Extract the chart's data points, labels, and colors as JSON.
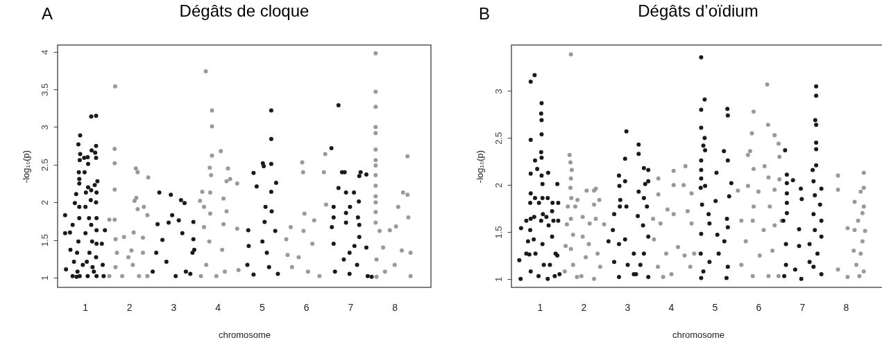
{
  "chart_data": [
    {
      "type": "scatter",
      "title": "Dégâts de cloque",
      "xlabel": "chromosome",
      "ylabel": "-log₁₀(p)",
      "annotations": [
        "A"
      ],
      "marker": "circle",
      "xlim": [
        0.38,
        8.82
      ],
      "ylim": [
        0.87,
        4.09
      ],
      "xticks": [
        1,
        2,
        3,
        4,
        5,
        6,
        7,
        8
      ],
      "yticks": [
        1.0,
        1.5,
        2.0,
        2.5,
        3.0,
        3.5,
        4.0
      ],
      "series": [
        {
          "color": "#1a1a1a",
          "x": [
            0.55,
            0.55,
            0.57,
            0.66,
            0.67,
            0.72,
            0.77,
            0.8,
            0.82,
            0.83,
            0.85,
            0.86,
            0.87,
            0.87,
            0.88,
            0.89,
            0.89,
            0.87,
            0.87,
            0.85,
            0.81,
            0.88,
            0.98,
            0.99,
            1.01,
            1.02,
            1.01,
            0.95,
            1.06,
            1.07,
            1.07,
            1.09,
            1.1,
            1.06,
            1.14,
            1.15,
            1.14,
            1.13,
            1.14,
            1.16,
            1.17,
            1.22,
            1.25,
            1.25,
            1.23,
            1.25,
            1.26,
            1.25,
            1.26,
            1.26,
            1.26,
            1.25,
            1.26,
            1.28,
            1.38,
            1.45,
            1.4,
            1.42,
            1.2,
            1.04,
            0.72,
            0.75
          ],
          "values": [
            1.83,
            1.59,
            1.11,
            1.6,
            1.37,
            1.7,
            1.99,
            2.11,
            1.33,
            1.08,
            2.77,
            2.4,
            2.25,
            2.31,
            2.56,
            2.89,
            2.64,
            1.94,
            1.79,
            1.48,
            1.01,
            1.02,
            2.59,
            2.4,
            1.94,
            2.13,
            1.59,
            1.17,
            2.6,
            2.51,
            2.2,
            1.79,
            1.33,
            1.02,
            3.14,
            2.69,
            2.16,
            2.03,
            1.7,
            1.48,
            1.14,
            2.23,
            3.15,
            2.75,
            2.66,
            2.59,
            2.13,
            2.0,
            1.79,
            1.63,
            1.45,
            1.27,
            1.02,
            2.28,
            1.45,
            1.63,
            1.17,
            1.02,
            1.08,
            1.21,
            1.02,
            1.21
          ]
        },
        {
          "color": "#999999",
          "x": [
            1.68,
            1.67,
            1.67,
            1.67,
            1.67,
            1.55,
            1.69,
            1.72,
            1.69,
            1.88,
            1.55,
            1.84,
            2.15,
            2.19,
            2.12,
            2.16,
            2.19,
            2.33,
            2.43,
            2.41,
            2.1,
            2.31,
            2.08,
            2.22,
            2.41,
            2.05,
            2.31,
            1.98
          ],
          "values": [
            3.54,
            2.71,
            2.52,
            2.17,
            1.77,
            1.77,
            1.51,
            1.33,
            1.14,
            1.54,
            1.02,
            1.02,
            2.45,
            2.4,
            2.02,
            2.06,
            1.91,
            1.94,
            2.33,
            1.83,
            1.6,
            1.53,
            1.17,
            1.02,
            1.02,
            1.36,
            1.33,
            1.27
          ]
        },
        {
          "color": "#1a1a1a",
          "x": [
            2.68,
            2.94,
            3.17,
            3.25,
            2.97,
            2.64,
            2.89,
            2.75,
            3.12,
            3.2,
            2.61,
            2.84,
            3.05,
            3.28,
            2.53,
            3.43,
            3.45,
            3.38,
            3.47,
            3.45
          ],
          "values": [
            2.13,
            2.1,
            2.03,
            1.99,
            1.83,
            1.71,
            1.73,
            1.5,
            1.76,
            1.59,
            1.33,
            1.21,
            1.02,
            1.08,
            1.08,
            1.33,
            1.74,
            1.05,
            1.37,
            1.51
          ]
        },
        {
          "color": "#999999",
          "x": [
            3.73,
            3.87,
            3.87,
            3.87,
            4.07,
            3.82,
            3.85,
            4.23,
            4.2,
            3.65,
            3.83,
            3.6,
            3.69,
            4.13,
            4.28,
            4.44,
            3.83,
            4.2,
            3.69,
            4.13,
            3.81,
            4.1,
            4.44,
            3.74,
            4.16,
            3.62,
            3.97,
            4.47
          ],
          "values": [
            3.74,
            3.22,
            3.01,
            2.62,
            2.68,
            2.46,
            2.36,
            2.45,
            2.28,
            2.14,
            2.13,
            2.02,
            1.94,
            2.05,
            2.31,
            2.25,
            1.85,
            1.88,
            1.67,
            1.71,
            1.48,
            1.37,
            1.65,
            1.17,
            1.08,
            1.02,
            1.02,
            1.1
          ]
        },
        {
          "color": "#1a1a1a",
          "x": [
            5.21,
            5.21,
            5.02,
            5.04,
            5.21,
            4.81,
            4.88,
            5.32,
            5.21,
            5.08,
            5.22,
            5.06,
            4.69,
            5.3,
            4.7,
            5.01,
            5.11,
            4.67,
            4.81,
            5.16,
            5.36
          ],
          "values": [
            3.22,
            2.84,
            2.52,
            2.48,
            2.51,
            2.39,
            2.21,
            2.26,
            2.14,
            1.94,
            1.88,
            1.74,
            1.63,
            1.62,
            1.42,
            1.48,
            1.33,
            1.17,
            1.04,
            1.14,
            1.05
          ]
        },
        {
          "color": "#999999",
          "x": [
            5.91,
            5.93,
            5.96,
            5.65,
            5.55,
            6.18,
            5.94,
            6.4,
            6.43,
            6.45,
            6.14,
            5.83,
            5.68,
            6.04,
            6.3,
            5.58
          ],
          "values": [
            2.53,
            2.4,
            1.85,
            1.67,
            1.51,
            1.76,
            1.62,
            2.4,
            2.64,
            1.97,
            1.45,
            1.27,
            1.14,
            1.08,
            1.02,
            1.3
          ]
        },
        {
          "color": "#1a1a1a",
          "x": [
            6.73,
            6.57,
            6.81,
            6.87,
            7.23,
            7.2,
            7.36,
            6.73,
            6.9,
            7.08,
            7.19,
            6.99,
            6.62,
            6.62,
            6.9,
            7.17,
            7.2,
            6.9,
            6.58,
            7.2,
            6.62,
            7.09,
            6.98,
            7.36,
            6.85,
            7.15,
            6.65,
            6.98,
            7.39,
            7.48
          ],
          "values": [
            3.29,
            2.72,
            2.4,
            2.4,
            2.4,
            2.35,
            2.37,
            2.19,
            2.13,
            2.13,
            2.01,
            1.94,
            1.94,
            1.8,
            1.86,
            1.8,
            1.7,
            1.73,
            1.67,
            1.54,
            1.45,
            1.42,
            1.33,
            1.4,
            1.24,
            1.17,
            1.08,
            1.05,
            1.02,
            1.01
          ]
        },
        {
          "color": "#999999",
          "x": [
            7.57,
            7.57,
            7.57,
            7.57,
            7.57,
            7.57,
            7.57,
            7.57,
            7.57,
            7.57,
            7.57,
            7.57,
            7.57,
            7.57,
            8.29,
            8.19,
            8.29,
            8.08,
            7.66,
            8.03,
            8.31,
            7.89,
            7.74,
            8.16,
            8.36,
            7.59,
            8.0,
            8.36,
            7.78,
            7.59
          ],
          "values": [
            3.98,
            3.47,
            3.27,
            3.0,
            2.92,
            2.7,
            2.56,
            2.49,
            2.36,
            2.22,
            2.08,
            2.0,
            1.87,
            1.73,
            2.61,
            2.13,
            2.1,
            1.94,
            1.62,
            1.68,
            1.8,
            1.63,
            1.4,
            1.36,
            1.33,
            1.24,
            1.17,
            1.02,
            1.08,
            1.01
          ]
        }
      ]
    },
    {
      "type": "scatter",
      "title": "Dégâts d’oïdium",
      "xlabel": "chromosome",
      "ylabel": "-log₁₀(p)",
      "annotations": [
        "B"
      ],
      "marker": "circle",
      "xlim": [
        0.35,
        8.89
      ],
      "ylim": [
        0.91,
        3.49
      ],
      "xticks": [
        1,
        2,
        3,
        4,
        5,
        6,
        7,
        8
      ],
      "yticks": [
        1.0,
        1.5,
        2.0,
        2.5,
        3.0
      ],
      "series": [
        {
          "color": "#1a1a1a",
          "x": [
            0.57,
            0.53,
            0.56,
            0.69,
            0.69,
            0.73,
            0.79,
            0.79,
            0.79,
            0.79,
            0.78,
            0.79,
            0.78,
            0.79,
            0.76,
            0.88,
            0.89,
            0.94,
            0.89,
            0.87,
            0.86,
            0.9,
            0.97,
            1.04,
            1.03,
            1.04,
            1.04,
            1.03,
            1.04,
            1.04,
            1.06,
            1.06,
            1.07,
            1.03,
            1.09,
            1.06,
            0.98,
            1.15,
            1.18,
            1.19,
            1.2,
            1.28,
            1.29,
            1.31,
            1.28,
            1.36,
            1.4,
            1.42,
            1.42,
            1.4,
            1.34,
            1.18,
            1.23,
            1.45
          ],
          "values": [
            1.54,
            1.2,
            1.0,
            1.62,
            1.27,
            1.4,
            3.1,
            2.48,
            2.12,
            1.91,
            1.81,
            1.64,
            1.52,
            1.08,
            1.26,
            3.17,
            2.26,
            2.17,
            1.86,
            1.66,
            1.42,
            1.27,
            1.03,
            2.87,
            2.76,
            2.69,
            2.54,
            2.35,
            2.29,
            2.1,
            2.01,
            1.86,
            1.69,
            1.62,
            1.15,
            1.37,
            1.81,
            1.66,
            1.86,
            2.13,
            1.57,
            1.72,
            1.81,
            1.62,
            1.45,
            1.27,
            2.01,
            1.81,
            1.62,
            1.25,
            1.03,
            1.0,
            1.15,
            1.05
          ]
        },
        {
          "color": "#999999",
          "x": [
            1.71,
            1.68,
            1.7,
            1.73,
            1.71,
            1.7,
            1.72,
            1.64,
            1.81,
            1.86,
            1.71,
            1.62,
            1.76,
            1.71,
            1.59,
            1.76,
            1.57,
            1.85,
            1.98,
            2.07,
            2.24,
            2.24,
            2.28,
            2.36,
            2.28,
            2.47,
            2.14,
            1.98,
            2.12,
            2.32,
            2.05,
            2.38,
            2.24,
            1.95
          ],
          "values": [
            3.39,
            2.32,
            2.24,
            2.16,
            2.07,
            1.97,
            1.86,
            1.77,
            1.77,
            1.84,
            1.64,
            1.58,
            1.47,
            1.32,
            1.35,
            1.15,
            1.08,
            1.02,
            1.66,
            1.94,
            1.94,
            1.79,
            1.96,
            1.84,
            1.64,
            1.58,
            1.59,
            1.45,
            1.37,
            1.27,
            1.23,
            1.13,
            1.0,
            1.03
          ]
        },
        {
          "color": "#1a1a1a",
          "x": [
            2.57,
            2.7,
            2.81,
            2.82,
            2.84,
            2.83,
            2.67,
            2.81,
            2.7,
            2.81,
            2.95,
            2.98,
            2.95,
            2.98,
            2.95,
            3.01,
            3.26,
            3.26,
            3.26,
            3.24,
            3.38,
            3.41,
            3.38,
            3.36,
            3.48,
            3.48,
            3.45,
            3.48,
            3.38,
            3.3,
            3.48,
            3.15,
            3.2,
            3.15
          ],
          "values": [
            1.4,
            1.69,
            2.1,
            1.99,
            1.84,
            1.77,
            1.52,
            1.37,
            1.18,
            1.02,
            2.04,
            2.57,
            2.28,
            1.77,
            1.42,
            1.15,
            2.43,
            2.33,
            1.93,
            1.67,
            2.18,
            2.01,
            1.86,
            1.57,
            2.16,
            2.04,
            1.77,
            1.45,
            1.27,
            1.15,
            1.02,
            1.27,
            1.05,
            1.05
          ]
        },
        {
          "color": "#999999",
          "x": [
            3.71,
            3.71,
            4.06,
            4.06,
            4.33,
            4.29,
            3.59,
            3.76,
            3.92,
            4.06,
            4.47,
            4.47,
            4.38,
            3.61,
            3.89,
            4.16,
            4.31,
            4.44,
            3.7,
            3.82,
            4.01,
            4.53
          ],
          "values": [
            2.07,
            1.9,
            2.15,
            2.0,
            2.2,
            2.0,
            1.64,
            1.59,
            1.74,
            1.69,
            1.91,
            1.59,
            1.72,
            1.42,
            1.27,
            1.34,
            1.25,
            1.13,
            1.13,
            1.02,
            1.05,
            1.27
          ]
        },
        {
          "color": "#1a1a1a",
          "x": [
            4.69,
            4.77,
            4.69,
            4.69,
            4.77,
            4.74,
            4.78,
            4.69,
            4.69,
            4.69,
            4.68,
            4.78,
            4.71,
            4.86,
            4.69,
            5.04,
            5.02,
            4.88,
            5.06,
            4.68,
            4.88,
            4.74,
            4.69,
            5.29,
            5.3,
            5.21,
            5.3,
            5.38,
            5.33,
            5.28,
            5.3,
            5.22,
            5.09,
            5.3,
            5.27
          ],
          "values": [
            3.36,
            2.91,
            2.8,
            2.61,
            2.5,
            2.42,
            2.37,
            2.26,
            2.16,
            2.07,
            1.97,
            1.99,
            1.79,
            1.69,
            1.48,
            2.13,
            1.83,
            1.59,
            1.47,
            1.27,
            1.18,
            1.08,
            1.01,
            2.81,
            2.74,
            2.36,
            2.26,
            2.02,
            1.88,
            1.64,
            1.55,
            1.4,
            1.27,
            1.13,
            1.01
          ]
        },
        {
          "color": "#999999",
          "x": [
            6.2,
            5.89,
            6.22,
            5.85,
            6.37,
            6.46,
            5.81,
            5.76,
            6.48,
            5.89,
            6.14,
            6.23,
            6.0,
            5.76,
            6.37,
            6.48,
            5.53,
            5.89,
            6.26,
            5.87,
            5.61,
            6.12,
            6.37,
            6.53,
            5.71,
            6.03,
            6.32,
            5.61,
            5.87,
            6.23,
            6.46
          ],
          "values": [
            3.07,
            2.78,
            2.64,
            2.55,
            2.53,
            2.44,
            2.36,
            2.32,
            2.3,
            2.17,
            2.2,
            2.08,
            1.93,
            1.99,
            1.95,
            2.06,
            1.94,
            1.77,
            1.77,
            1.62,
            1.62,
            1.52,
            1.57,
            1.62,
            1.4,
            1.25,
            1.3,
            1.15,
            1.03,
            1.03,
            1.03
          ]
        },
        {
          "color": "#1a1a1a",
          "x": [
            6.61,
            6.65,
            6.65,
            6.65,
            6.65,
            6.65,
            6.57,
            6.79,
            6.63,
            6.63,
            6.59,
            6.93,
            6.84,
            6.98,
            6.93,
            6.97,
            6.99,
            7.32,
            7.32,
            7.3,
            7.32,
            7.32,
            7.32,
            7.32,
            7.24,
            7.26,
            7.44,
            7.29,
            7.41,
            7.26,
            7.44,
            7.29,
            7.44,
            7.17,
            7.35,
            7.17,
            7.44,
            7.26
          ],
          "values": [
            2.37,
            2.11,
            2.02,
            1.91,
            1.81,
            1.7,
            1.62,
            2.05,
            1.37,
            1.15,
            1.03,
            1.35,
            1.1,
            1.0,
            1.53,
            1.96,
            1.85,
            3.05,
            2.95,
            2.69,
            2.64,
            2.45,
            2.38,
            2.21,
            2.16,
            2.04,
            1.96,
            1.89,
            1.79,
            1.69,
            1.62,
            1.52,
            1.45,
            1.37,
            1.27,
            1.18,
            1.05,
            1.13
          ]
        },
        {
          "color": "#999999",
          "x": [
            7.82,
            7.82,
            8.41,
            8.41,
            8.34,
            8.2,
            8.41,
            8.38,
            8.28,
            8.04,
            8.2,
            8.44,
            8.38,
            8.18,
            8.34,
            8.24,
            8.41,
            7.82,
            8.04,
            8.31
          ],
          "values": [
            2.1,
            1.95,
            2.13,
            1.97,
            1.93,
            1.82,
            1.77,
            1.7,
            1.62,
            1.54,
            1.52,
            1.51,
            1.4,
            1.3,
            1.27,
            1.15,
            1.08,
            1.1,
            1.02,
            1.03
          ]
        }
      ]
    }
  ]
}
